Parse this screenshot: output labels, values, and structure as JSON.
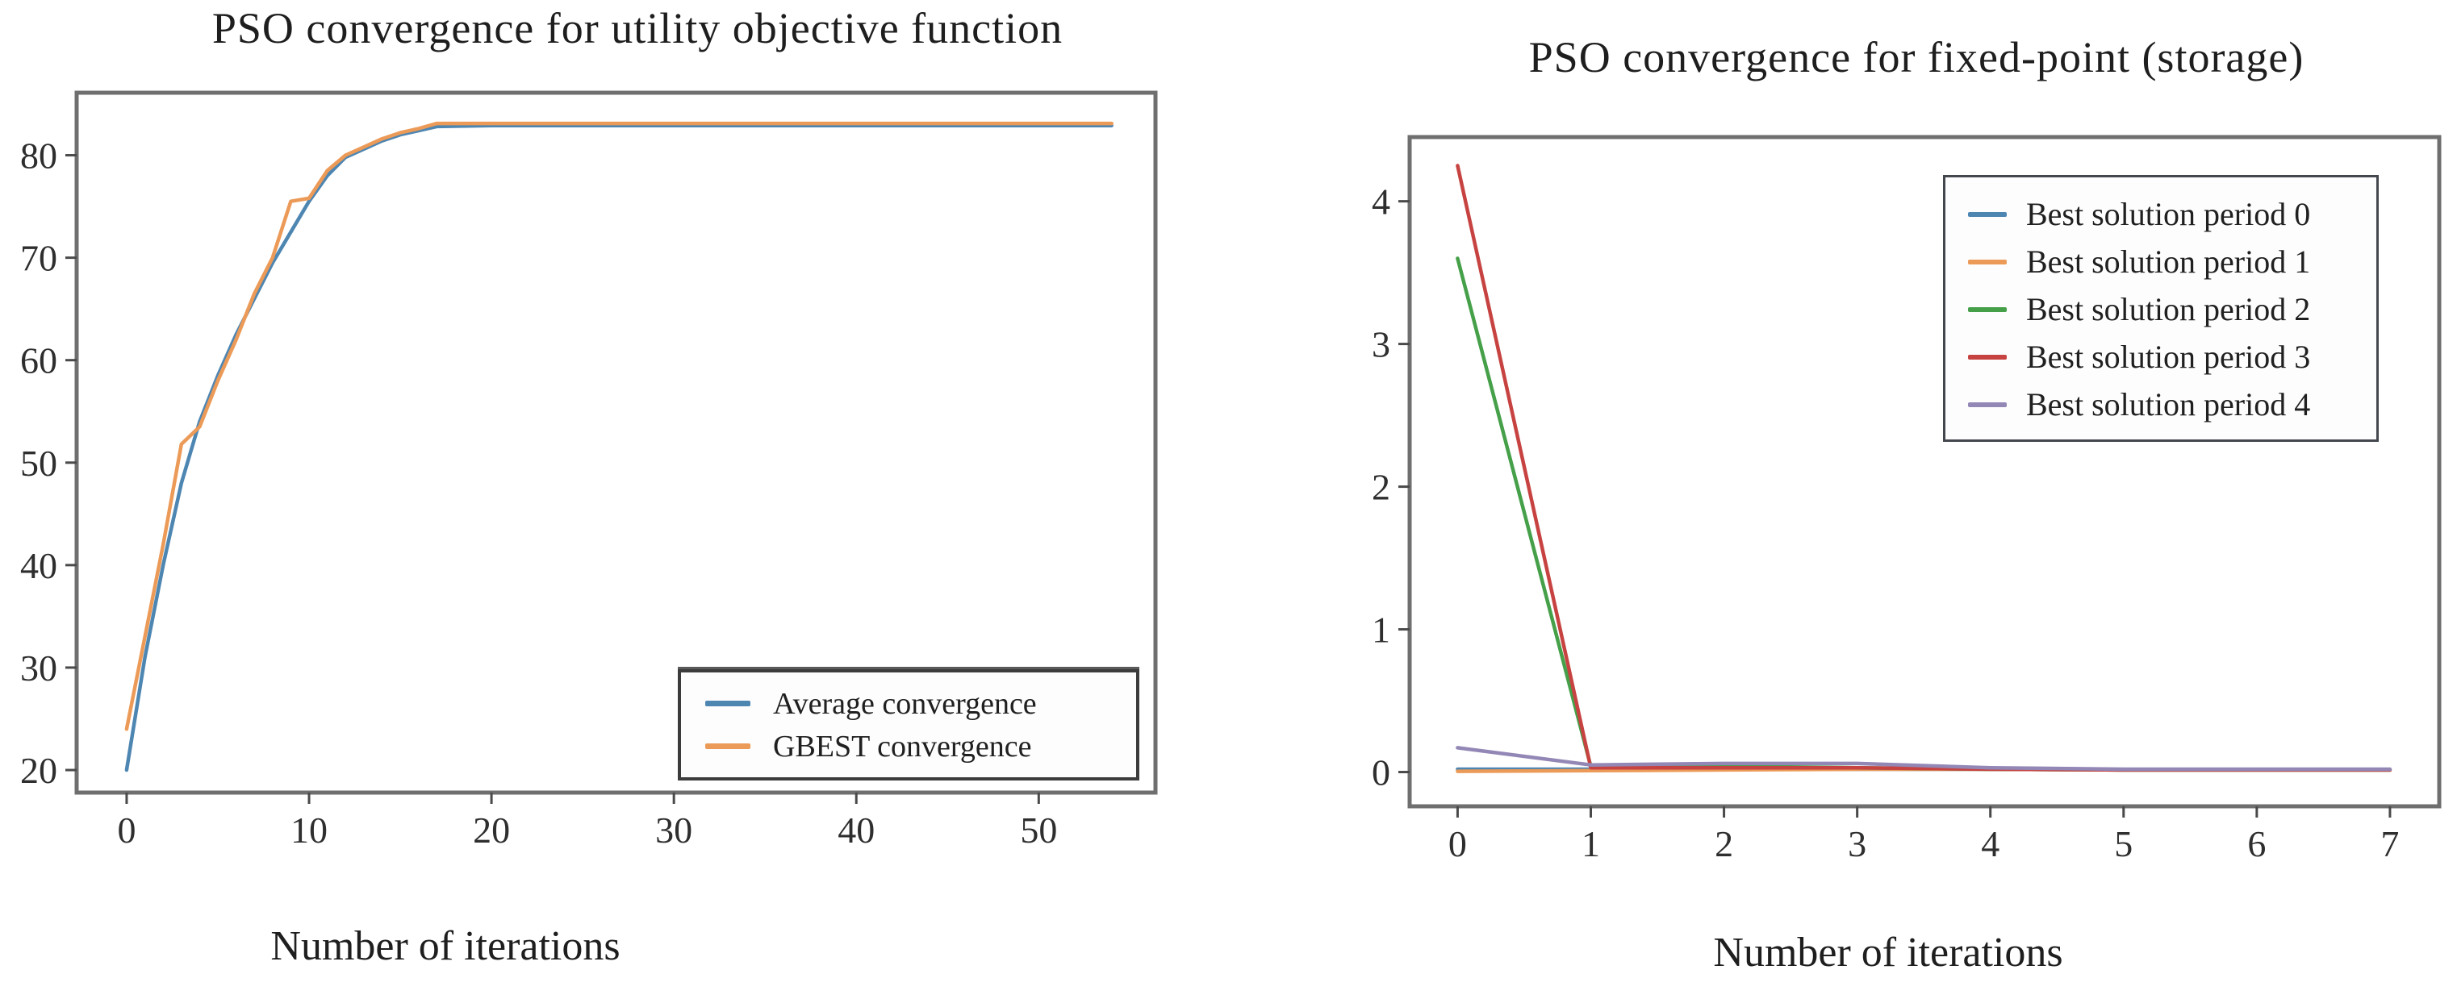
{
  "page": {
    "background": "#ffffff",
    "spine_color": "#6f6f6f",
    "tick_color": "#4a4a4a"
  },
  "chart_data": [
    {
      "id": "utility",
      "type": "line",
      "title": "PSO convergence for utility objective function",
      "xlabel": "Number of iterations",
      "ylabel": "",
      "xlim": [
        -2.74,
        56.4
      ],
      "ylim": [
        17.8,
        86.1
      ],
      "xticks": [
        0,
        10,
        20,
        30,
        40,
        50
      ],
      "yticks": [
        20,
        30,
        40,
        50,
        60,
        70,
        80
      ],
      "grid": false,
      "legend_position": "lower right",
      "x": [
        0,
        1,
        2,
        3,
        4,
        5,
        6,
        7,
        8,
        9,
        10,
        11,
        12,
        13,
        14,
        15,
        16,
        17,
        20,
        25,
        30,
        35,
        40,
        45,
        50,
        54
      ],
      "series": [
        {
          "name": "Average convergence",
          "color": "#4e86b2",
          "values": [
            20,
            31,
            40,
            48,
            54,
            58.5,
            62.5,
            66,
            69.5,
            72.5,
            75.5,
            78,
            79.8,
            80.6,
            81.4,
            82,
            82.4,
            82.8,
            82.9,
            82.9,
            82.9,
            82.9,
            82.9,
            82.9,
            82.9,
            82.9
          ]
        },
        {
          "name": "GBEST convergence",
          "color": "#ec9a57",
          "values": [
            24,
            33,
            42,
            51.8,
            53.5,
            58,
            62,
            66.5,
            70,
            75.5,
            75.8,
            78.5,
            80,
            80.8,
            81.6,
            82.2,
            82.6,
            83.1,
            83.1,
            83.1,
            83.1,
            83.1,
            83.1,
            83.1,
            83.1,
            83.1
          ]
        }
      ]
    },
    {
      "id": "storage",
      "type": "line",
      "title": "PSO convergence for fixed-point (storage)",
      "xlabel": "Number of iterations",
      "ylabel": "",
      "xlim": [
        -0.36,
        7.37
      ],
      "ylim": [
        -0.24,
        4.45
      ],
      "xticks": [
        0,
        1,
        2,
        3,
        4,
        5,
        6,
        7
      ],
      "yticks": [
        0,
        1,
        2,
        3,
        4
      ],
      "grid": false,
      "legend_position": "upper right",
      "x": [
        0,
        1,
        2,
        3,
        4,
        5,
        6,
        7
      ],
      "series": [
        {
          "name": "Best solution period 0",
          "color": "#4e86b2",
          "values": [
            0.02,
            0.02,
            0.02,
            0.02,
            0.02,
            0.015,
            0.015,
            0.015
          ]
        },
        {
          "name": "Best solution period 1",
          "color": "#ec9a57",
          "values": [
            0.005,
            0.01,
            0.015,
            0.02,
            0.02,
            0.015,
            0.015,
            0.015
          ]
        },
        {
          "name": "Best solution period 2",
          "color": "#45a049",
          "values": [
            3.6,
            0.04,
            0.04,
            0.03,
            0.02,
            0.015,
            0.015,
            0.015
          ]
        },
        {
          "name": "Best solution period 3",
          "color": "#c74341",
          "values": [
            4.25,
            0.03,
            0.03,
            0.03,
            0.02,
            0.015,
            0.015,
            0.015
          ]
        },
        {
          "name": "Best solution period 4",
          "color": "#9387b6",
          "values": [
            0.17,
            0.05,
            0.06,
            0.06,
            0.03,
            0.02,
            0.02,
            0.02
          ]
        }
      ]
    }
  ]
}
